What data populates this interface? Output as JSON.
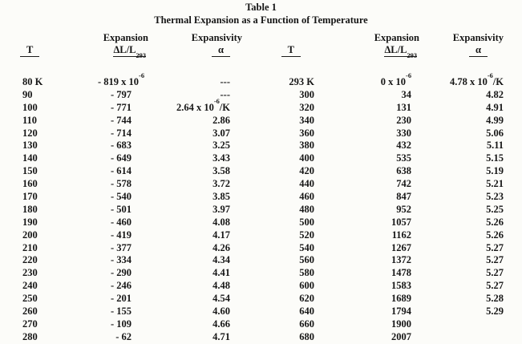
{
  "title": "Table 1",
  "subtitle": "Thermal Expansion as a Function of Temperature",
  "headers": {
    "t": "T",
    "expansion": "Expansion",
    "expansion_sub": "ΔL/L_{293}",
    "expansivity": "Expansivity",
    "alpha": "α"
  },
  "missing_marker": "---",
  "table": {
    "left_rows": [
      [
        "80 K",
        "- 819 x 10^{-6}",
        "---"
      ],
      [
        "90",
        "- 797",
        "---"
      ],
      [
        "100",
        "- 771",
        "2.64 x 10^{-6}/K"
      ],
      [
        "110",
        "- 744",
        "2.86"
      ],
      [
        "120",
        "- 714",
        "3.07"
      ],
      [
        "130",
        "- 683",
        "3.25"
      ],
      [
        "140",
        "- 649",
        "3.43"
      ],
      [
        "150",
        "- 614",
        "3.58"
      ],
      [
        "160",
        "- 578",
        "3.72"
      ],
      [
        "170",
        "- 540",
        "3.85"
      ],
      [
        "180",
        "- 501",
        "3.97"
      ],
      [
        "190",
        "- 460",
        "4.08"
      ],
      [
        "200",
        "- 419",
        "4.17"
      ],
      [
        "210",
        "- 377",
        "4.26"
      ],
      [
        "220",
        "- 334",
        "4.34"
      ],
      [
        "230",
        "- 290",
        "4.41"
      ],
      [
        "240",
        "- 246",
        "4.48"
      ],
      [
        "250",
        "- 201",
        "4.54"
      ],
      [
        "260",
        "- 155",
        "4.60"
      ],
      [
        "270",
        "- 109",
        "4.66"
      ],
      [
        "280",
        "- 62",
        "4.71"
      ]
    ],
    "right_rows": [
      [
        "293 K",
        "0 x 10^{-6}",
        "4.78 x 10^{-6}/K"
      ],
      [
        "300",
        "34",
        "4.82"
      ],
      [
        "320",
        "131",
        "4.91"
      ],
      [
        "340",
        "230",
        "4.99"
      ],
      [
        "360",
        "330",
        "5.06"
      ],
      [
        "380",
        "432",
        "5.11"
      ],
      [
        "400",
        "535",
        "5.15"
      ],
      [
        "420",
        "638",
        "5.19"
      ],
      [
        "440",
        "742",
        "5.21"
      ],
      [
        "460",
        "847",
        "5.23"
      ],
      [
        "480",
        "952",
        "5.25"
      ],
      [
        "500",
        "1057",
        "5.26"
      ],
      [
        "520",
        "1162",
        "5.26"
      ],
      [
        "540",
        "1267",
        "5.27"
      ],
      [
        "560",
        "1372",
        "5.27"
      ],
      [
        "580",
        "1478",
        "5.27"
      ],
      [
        "600",
        "1583",
        "5.27"
      ],
      [
        "620",
        "1689",
        "5.28"
      ],
      [
        "640",
        "1794",
        "5.29"
      ],
      [
        "660",
        "1900",
        ""
      ],
      [
        "680",
        "2007",
        ""
      ]
    ]
  }
}
